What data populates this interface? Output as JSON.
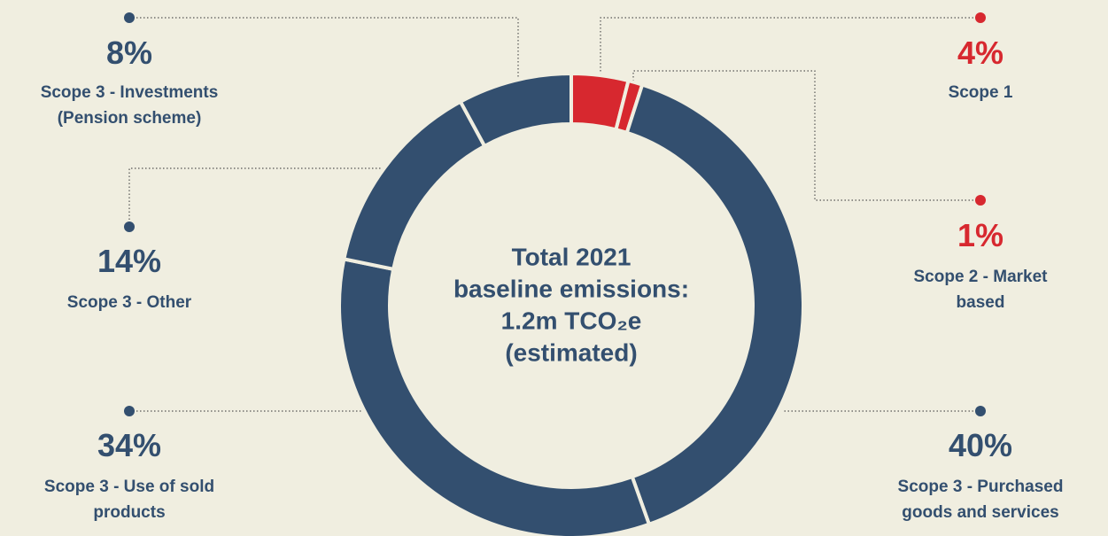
{
  "chart_data": {
    "type": "donut",
    "categories": [
      "Scope 1",
      "Scope 2 - Market based",
      "Scope 3 - Purchased goods and services",
      "Scope 3 - Use of sold products",
      "Scope 3 - Other",
      "Scope 3 - Investments (Pension scheme)"
    ],
    "values": [
      4,
      1,
      40,
      34,
      14,
      8
    ],
    "value_labels": [
      "4%",
      "1%",
      "40%",
      "34%",
      "14%",
      "8%"
    ],
    "colors": [
      "#d7282f",
      "#d7282f",
      "#334f6f",
      "#334f6f",
      "#334f6f",
      "#334f6f"
    ],
    "center_label": [
      "Total 2021",
      "baseline emissions:",
      "1.2m TCO₂e",
      "(estimated)"
    ]
  }
}
